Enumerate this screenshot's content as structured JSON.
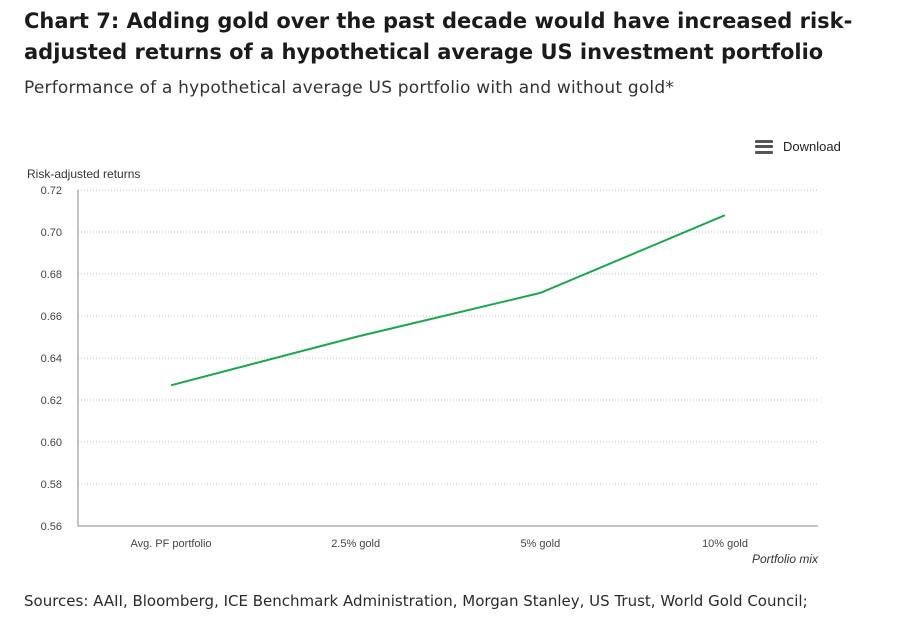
{
  "header": {
    "title": "Chart 7: Adding gold over the past decade would have increased risk-adjusted returns of a hypothetical average US investment portfolio",
    "subtitle": "Performance of a hypothetical average US portfolio with and without gold*"
  },
  "toolbar": {
    "download_label": "Download",
    "download_icon": "menu-icon"
  },
  "chart_data": {
    "type": "line",
    "ylabel": "Risk-adjusted returns",
    "xlabel": "Portfolio mix",
    "categories": [
      "Avg. PF portfolio",
      "2.5% gold",
      "5% gold",
      "10% gold"
    ],
    "series": [
      {
        "values": [
          0.627,
          0.65,
          0.671,
          0.708
        ],
        "color": "#1aa84b"
      }
    ],
    "ylim": [
      0.56,
      0.72
    ],
    "yticks": [
      "0.56",
      "0.58",
      "0.60",
      "0.62",
      "0.64",
      "0.66",
      "0.68",
      "0.70",
      "0.72"
    ],
    "grid": true,
    "legend": "none"
  },
  "footer": {
    "source": "Sources: AAII, Bloomberg, ICE Benchmark Administration, Morgan Stanley, US Trust, World Gold Council;"
  }
}
